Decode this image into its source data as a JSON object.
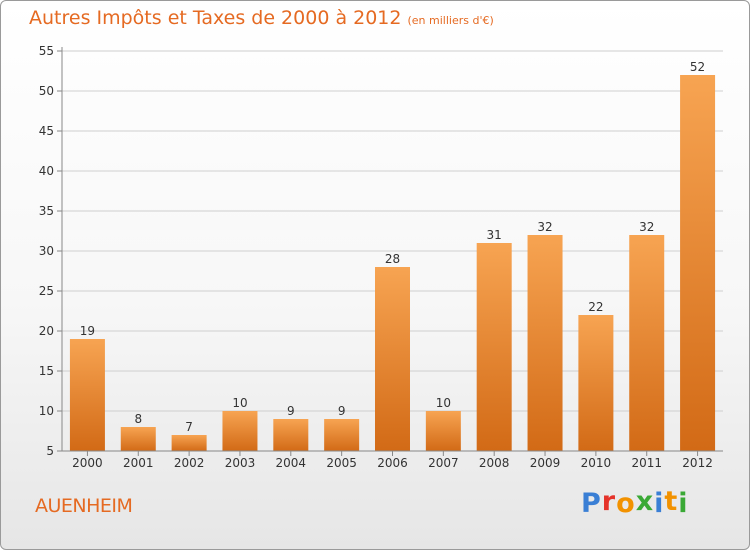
{
  "title": "Autres Impôts et Taxes de 2000 à 2012",
  "unit_note": "(en milliers d'€)",
  "commune": "AUENHEIM",
  "logo": {
    "text": "Proxiti",
    "colors": [
      "#3a7fd5",
      "#e5332a",
      "#f29200",
      "#3aa935",
      "#3a7fd5",
      "#f29200",
      "#3aa935"
    ]
  },
  "colors": {
    "accent": "#e56a22",
    "bar_top": "#f7a452",
    "bar_bottom": "#d26a16",
    "axis": "#888888",
    "grid": "#cfcfcf",
    "text": "#333333"
  },
  "chart_data": {
    "type": "bar",
    "title": "Autres Impôts et Taxes de 2000 à 2012",
    "xlabel": "",
    "ylabel": "",
    "categories": [
      "2000",
      "2001",
      "2002",
      "2003",
      "2004",
      "2005",
      "2006",
      "2007",
      "2008",
      "2009",
      "2010",
      "2011",
      "2012"
    ],
    "values": [
      19,
      8,
      7,
      10,
      9,
      9,
      28,
      10,
      31,
      32,
      22,
      32,
      52
    ],
    "ylim": [
      5,
      55
    ],
    "yticks": [
      5,
      10,
      15,
      20,
      25,
      30,
      35,
      40,
      45,
      50,
      55
    ],
    "grid": true,
    "data_labels": true
  }
}
